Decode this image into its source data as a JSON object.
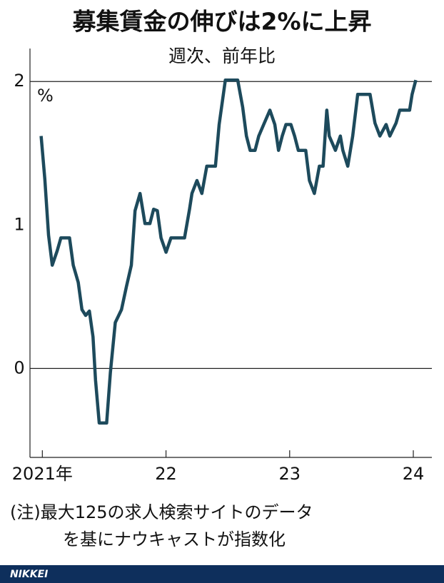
{
  "chart_data": {
    "type": "line",
    "title": "募集賃金の伸びは2%に上昇",
    "subtitle": "週次、前年比",
    "y_unit": "%",
    "note": [
      "(注)最大125の求人検索サイトのデータ",
      "を基にナウキャストが指数化"
    ],
    "source": "NIKKEI",
    "xlim": [
      2020.9,
      2024.15
    ],
    "xticks": [
      {
        "value": 2021,
        "label": "2021年"
      },
      {
        "value": 2022,
        "label": "22"
      },
      {
        "value": 2023,
        "label": "23"
      },
      {
        "value": 2024,
        "label": "24"
      }
    ],
    "ylim": [
      -0.62,
      2.22
    ],
    "yticks": [
      0,
      1,
      2
    ],
    "grid_lines": [
      0,
      2
    ],
    "x": [
      2020.99,
      2021.02,
      2021.05,
      2021.08,
      2021.12,
      2021.15,
      2021.22,
      2021.25,
      2021.29,
      2021.32,
      2021.35,
      2021.38,
      2021.41,
      2021.43,
      2021.46,
      2021.52,
      2021.55,
      2021.59,
      2021.64,
      2021.68,
      2021.72,
      2021.75,
      2021.79,
      2021.83,
      2021.87,
      2021.9,
      2021.93,
      2021.96,
      2022.0,
      2022.04,
      2022.15,
      2022.19,
      2022.21,
      2022.25,
      2022.29,
      2022.33,
      2022.4,
      2022.43,
      2022.48,
      2022.58,
      2022.62,
      2022.65,
      2022.68,
      2022.72,
      2022.75,
      2022.79,
      2022.84,
      2022.88,
      2022.91,
      2022.94,
      2022.97,
      2023.01,
      2023.04,
      2023.07,
      2023.13,
      2023.16,
      2023.2,
      2023.24,
      2023.27,
      2023.3,
      2023.32,
      2023.37,
      2023.41,
      2023.43,
      2023.47,
      2023.51,
      2023.55,
      2023.65,
      2023.69,
      2023.73,
      2023.78,
      2023.81,
      2023.86,
      2023.89,
      2023.97,
      2023.99,
      2024.02
    ],
    "series": [
      {
        "name": "募集賃金",
        "color": "#1d4a5c",
        "values": [
          1.62,
          1.32,
          0.93,
          0.72,
          0.82,
          0.91,
          0.91,
          0.72,
          0.6,
          0.41,
          0.37,
          0.4,
          0.22,
          -0.08,
          -0.38,
          -0.38,
          -0.03,
          0.32,
          0.41,
          0.57,
          0.72,
          1.1,
          1.22,
          1.01,
          1.01,
          1.11,
          1.1,
          0.91,
          0.81,
          0.91,
          0.91,
          1.11,
          1.22,
          1.31,
          1.22,
          1.41,
          1.41,
          1.7,
          2.01,
          2.01,
          1.82,
          1.62,
          1.52,
          1.52,
          1.62,
          1.7,
          1.8,
          1.7,
          1.52,
          1.62,
          1.7,
          1.7,
          1.62,
          1.52,
          1.52,
          1.31,
          1.22,
          1.41,
          1.41,
          1.8,
          1.62,
          1.52,
          1.62,
          1.52,
          1.41,
          1.62,
          1.91,
          1.91,
          1.71,
          1.62,
          1.7,
          1.62,
          1.71,
          1.8,
          1.8,
          1.91,
          2.01
        ]
      }
    ]
  }
}
